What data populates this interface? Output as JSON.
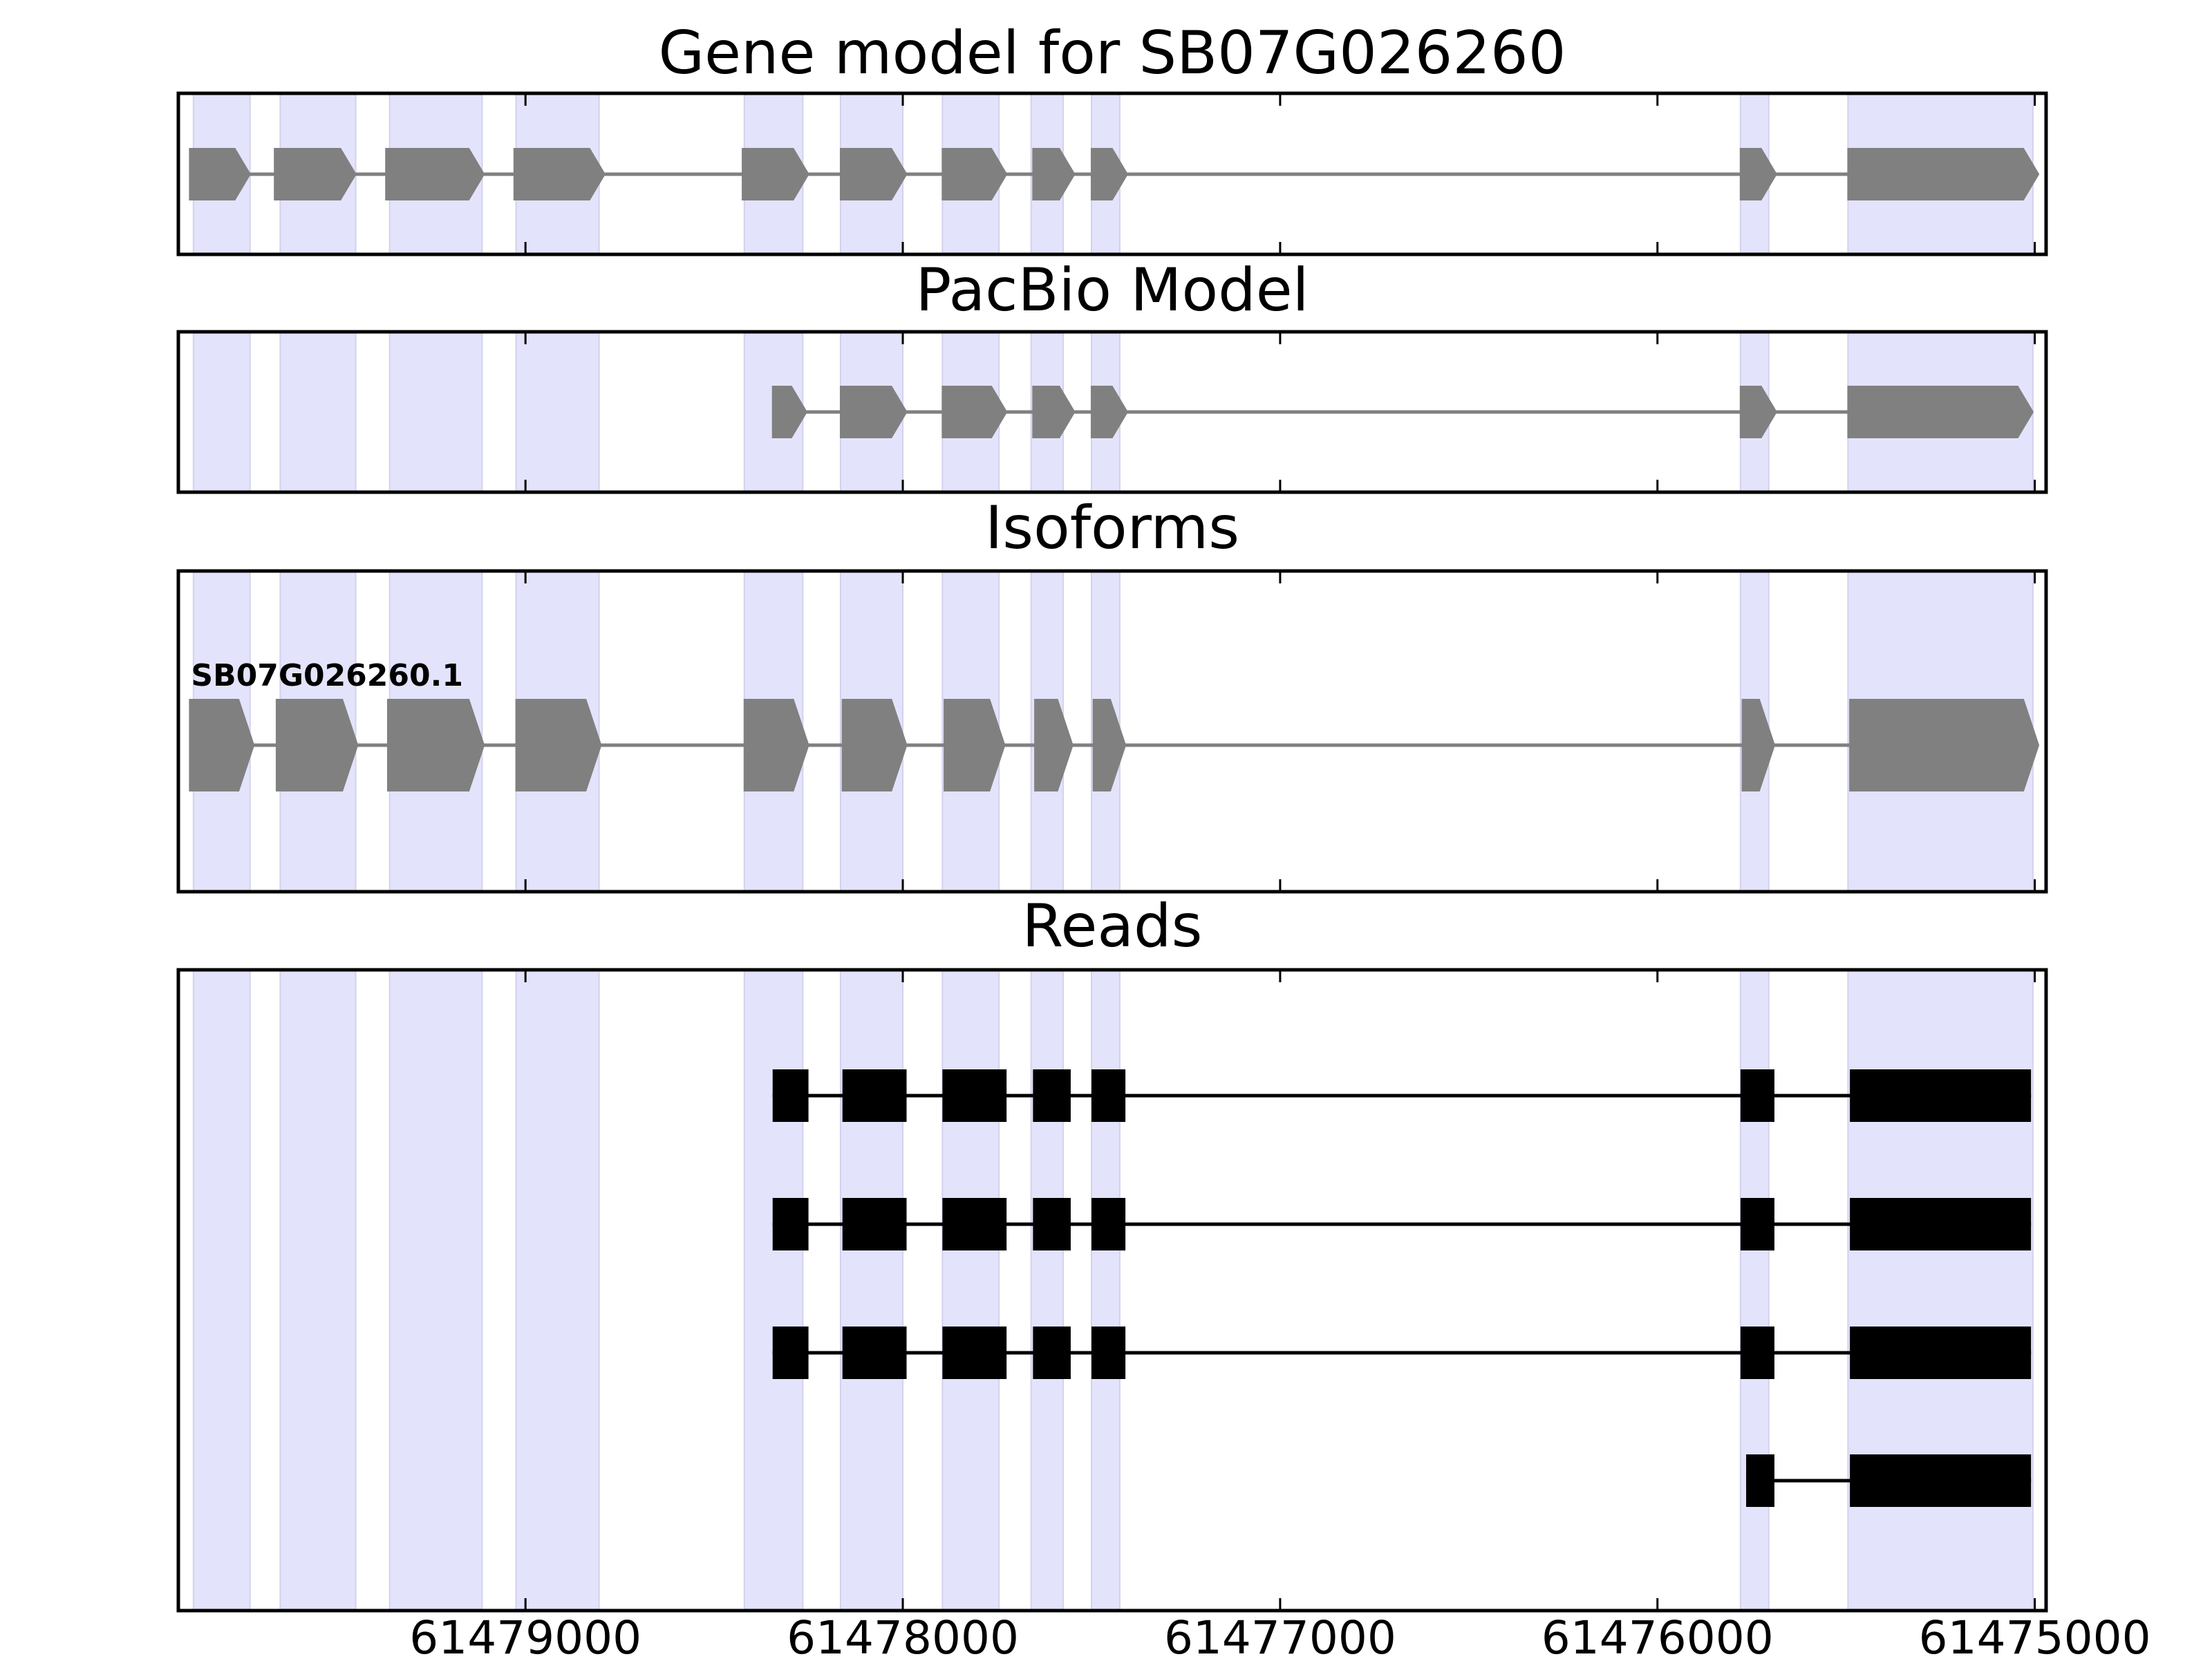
{
  "chart_data": {
    "type": "gene_track",
    "x_axis": {
      "reversed": true,
      "xlim": [
        61479920,
        61474970
      ],
      "ticks": [
        61479000,
        61478000,
        61477000,
        61476000,
        61475000
      ],
      "tick_labels": [
        "61479000",
        "61478000",
        "61477000",
        "61476000",
        "61475000"
      ]
    },
    "highlight_color": "#e3e3fb",
    "exon_regions": [
      [
        61479880,
        61479730
      ],
      [
        61479650,
        61479450
      ],
      [
        61479360,
        61479115
      ],
      [
        61479025,
        61478805
      ],
      [
        61478420,
        61478265
      ],
      [
        61478165,
        61478000
      ],
      [
        61477895,
        61477745
      ],
      [
        61477660,
        61477575
      ],
      [
        61477500,
        61477425
      ],
      [
        61475780,
        61475705
      ],
      [
        61475495,
        61475005
      ]
    ],
    "panels": [
      {
        "id": "gene-model",
        "title": "Gene model for SB07G026260",
        "style": "arrow",
        "color": "#808080",
        "rows": [
          {
            "label": "",
            "exons": [
              [
                61479890,
                61479730
              ],
              [
                61479665,
                61479450
              ],
              [
                61479370,
                61479110
              ],
              [
                61479030,
                61478790
              ],
              [
                61478425,
                61478250
              ],
              [
                61478165,
                61477990
              ],
              [
                61477895,
                61477725
              ],
              [
                61477655,
                61477545
              ],
              [
                61477500,
                61477405
              ],
              [
                61475780,
                61475685
              ],
              [
                61475495,
                61474990
              ]
            ]
          }
        ]
      },
      {
        "id": "pacbio-model",
        "title": "PacBio Model",
        "style": "arrow",
        "color": "#808080",
        "rows": [
          {
            "label": "",
            "exons": [
              [
                61478345,
                61478255
              ],
              [
                61478165,
                61477990
              ],
              [
                61477895,
                61477725
              ],
              [
                61477655,
                61477545
              ],
              [
                61477500,
                61477405
              ],
              [
                61475780,
                61475685
              ],
              [
                61475495,
                61475005
              ]
            ]
          }
        ]
      },
      {
        "id": "isoforms",
        "title": "Isoforms",
        "style": "arrow",
        "color": "#808080",
        "rows": [
          {
            "label": "SB07G026260.1",
            "exons": [
              [
                61479890,
                61479720
              ],
              [
                61479660,
                61479445
              ],
              [
                61479365,
                61479110
              ],
              [
                61479025,
                61478800
              ],
              [
                61478420,
                61478250
              ],
              [
                61478160,
                61477990
              ],
              [
                61477890,
                61477730
              ],
              [
                61477650,
                61477550
              ],
              [
                61477495,
                61477410
              ],
              [
                61475775,
                61475690
              ],
              [
                61475490,
                61474990
              ]
            ]
          }
        ]
      },
      {
        "id": "reads",
        "title": "Reads",
        "style": "block",
        "color": "#000000",
        "rows": [
          {
            "label": "",
            "exons": [
              [
                61478345,
                61478250
              ],
              [
                61478160,
                61477990
              ],
              [
                61477895,
                61477725
              ],
              [
                61477655,
                61477555
              ],
              [
                61477500,
                61477410
              ],
              [
                61475780,
                61475690
              ],
              [
                61475490,
                61475010
              ]
            ]
          },
          {
            "label": "",
            "exons": [
              [
                61478345,
                61478250
              ],
              [
                61478160,
                61477990
              ],
              [
                61477895,
                61477725
              ],
              [
                61477655,
                61477555
              ],
              [
                61477500,
                61477410
              ],
              [
                61475780,
                61475690
              ],
              [
                61475490,
                61475010
              ]
            ]
          },
          {
            "label": "",
            "exons": [
              [
                61478345,
                61478250
              ],
              [
                61478160,
                61477990
              ],
              [
                61477895,
                61477725
              ],
              [
                61477655,
                61477555
              ],
              [
                61477500,
                61477410
              ],
              [
                61475780,
                61475690
              ],
              [
                61475490,
                61475010
              ]
            ]
          },
          {
            "label": "",
            "exons": [
              [
                61475765,
                61475690
              ],
              [
                61475490,
                61475010
              ]
            ]
          }
        ]
      }
    ]
  }
}
